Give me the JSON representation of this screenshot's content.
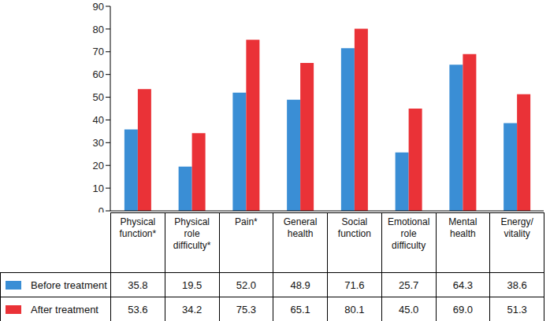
{
  "chart_data": {
    "type": "bar",
    "categories": [
      "Physical function*",
      "Physical role difficulty*",
      "Pain*",
      "General health",
      "Social function",
      "Emotional role difficulty",
      "Mental health",
      "Energy/ vitality"
    ],
    "series": [
      {
        "name": "Before treatment",
        "color": "#3a8ed5",
        "values": [
          35.8,
          19.5,
          52.0,
          48.9,
          71.6,
          25.7,
          64.3,
          38.6
        ],
        "value_labels": [
          "35.8",
          "19.5",
          "52.0",
          "48.9",
          "71.6",
          "25.7",
          "64.3",
          "38.6"
        ]
      },
      {
        "name": "After treatment",
        "color": "#ea3237",
        "values": [
          53.6,
          34.2,
          75.3,
          65.1,
          80.1,
          45.0,
          69.0,
          51.3
        ],
        "value_labels": [
          "53.6",
          "34.2",
          "75.3",
          "65.1",
          "80.1",
          "45.0",
          "69.0",
          "51.3"
        ]
      }
    ],
    "ylim": [
      0,
      90
    ],
    "yticks": [
      0,
      10,
      20,
      30,
      40,
      50,
      60,
      70,
      80,
      90
    ],
    "grid": false
  }
}
